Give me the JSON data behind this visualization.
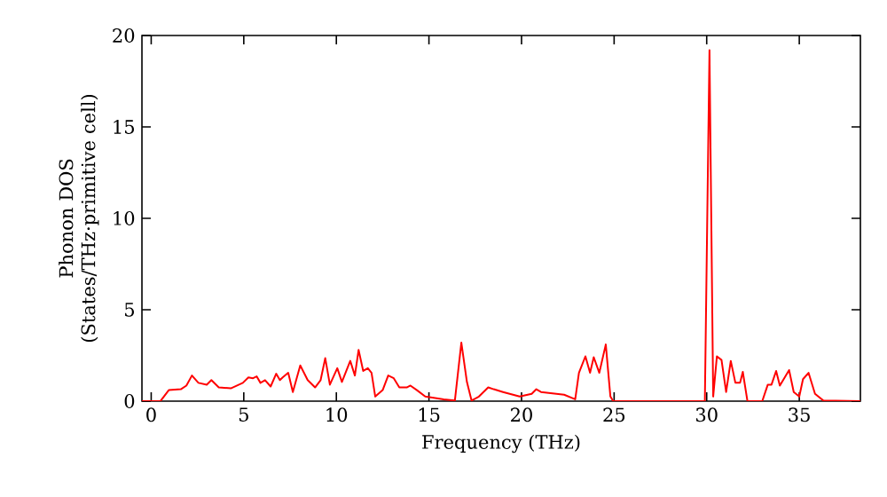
{
  "chart_data": {
    "type": "line",
    "xlabel": "Frequency (THz)",
    "ylabel": "Phonon DOS (States/THz·primitive cell)",
    "xlim": [
      -0.5,
      38.3
    ],
    "ylim": [
      0,
      20
    ],
    "xticks": [
      0,
      5,
      10,
      15,
      20,
      25,
      30,
      35
    ],
    "yticks": [
      0,
      5,
      10,
      15,
      20
    ],
    "grid": false,
    "legend": false,
    "marker": "none",
    "line_style": "solid",
    "x": [
      -0.5,
      0.5,
      0.95,
      1.6,
      1.9,
      2.2,
      2.55,
      3.0,
      3.25,
      3.65,
      4.3,
      4.95,
      5.25,
      5.5,
      5.7,
      5.9,
      6.15,
      6.45,
      6.75,
      6.95,
      7.1,
      7.4,
      7.65,
      8.05,
      8.45,
      8.85,
      9.15,
      9.4,
      9.65,
      10.05,
      10.3,
      10.75,
      11.0,
      11.2,
      11.45,
      11.7,
      11.9,
      12.1,
      12.5,
      12.8,
      13.1,
      13.4,
      13.8,
      14.0,
      14.35,
      14.8,
      15.8,
      16.4,
      16.75,
      17.05,
      17.3,
      17.7,
      18.2,
      18.5,
      19.0,
      19.9,
      20.55,
      20.8,
      21.05,
      22.3,
      22.9,
      23.1,
      23.45,
      23.7,
      23.9,
      24.2,
      24.55,
      24.8,
      24.95,
      29.9,
      30.15,
      30.35,
      30.55,
      30.8,
      31.05,
      31.3,
      31.55,
      31.8,
      31.95,
      32.2,
      33.0,
      33.3,
      33.5,
      33.75,
      33.95,
      34.45,
      34.7,
      35.0,
      35.2,
      35.5,
      35.85,
      36.3,
      38.3
    ],
    "series": [
      {
        "color": "#ff0000",
        "values": [
          0,
          0,
          0.6,
          0.65,
          0.85,
          1.4,
          1.0,
          0.9,
          1.15,
          0.75,
          0.7,
          1.0,
          1.3,
          1.25,
          1.35,
          1.0,
          1.15,
          0.8,
          1.5,
          1.15,
          1.3,
          1.55,
          0.5,
          1.95,
          1.15,
          0.75,
          1.15,
          2.35,
          0.9,
          1.8,
          1.05,
          2.2,
          1.4,
          2.8,
          1.65,
          1.8,
          1.55,
          0.25,
          0.6,
          1.4,
          1.25,
          0.75,
          0.75,
          0.85,
          0.6,
          0.25,
          0.1,
          0.03,
          3.2,
          1.05,
          0.03,
          0.25,
          0.75,
          0.65,
          0.5,
          0.25,
          0.4,
          0.65,
          0.5,
          0.35,
          0.1,
          1.55,
          2.45,
          1.55,
          2.4,
          1.55,
          3.1,
          0.25,
          0,
          0,
          19.2,
          0.25,
          2.45,
          2.25,
          0.5,
          2.2,
          1.0,
          1.0,
          1.6,
          0,
          0,
          0.9,
          0.9,
          1.65,
          0.85,
          1.7,
          0.5,
          0.25,
          1.2,
          1.55,
          0.4,
          0.03,
          0
        ]
      }
    ]
  }
}
